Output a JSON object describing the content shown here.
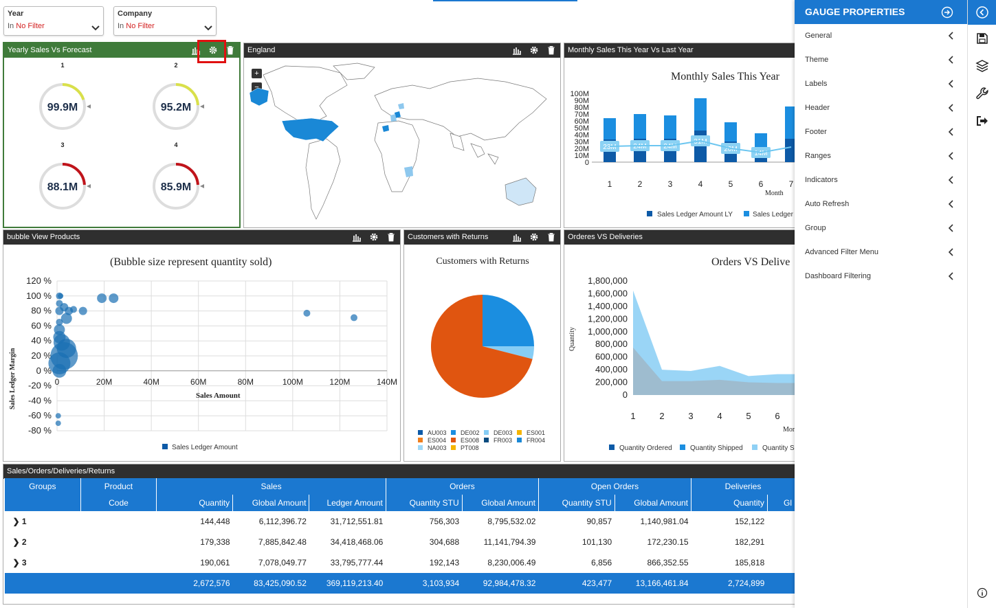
{
  "filters": [
    {
      "title": "Year",
      "prefix": "In",
      "value": "No Filter"
    },
    {
      "title": "Company",
      "prefix": "In",
      "value": "No Filter"
    }
  ],
  "panels": {
    "gauges": {
      "title": "Yearly Sales Vs Forecast",
      "items": [
        {
          "num": "1",
          "value": "99.9M",
          "fraction": 0.2,
          "color": "#d9e04a"
        },
        {
          "num": "2",
          "value": "95.2M",
          "fraction": 0.24,
          "color": "#d9e04a"
        },
        {
          "num": "3",
          "value": "88.1M",
          "fraction": 0.24,
          "color": "#c0141b"
        },
        {
          "num": "4",
          "value": "85.9M",
          "fraction": 0.24,
          "color": "#c0141b"
        }
      ]
    },
    "map": {
      "title": "England",
      "zoom_in": "+",
      "zoom_out": "−"
    },
    "monthly": {
      "title": "Monthly Sales This Year Vs Last Year",
      "chart_title": "Monthly Sales This Year",
      "xlabel": "Month",
      "legend": [
        "Sales Ledger Amount LY",
        "Sales Ledger"
      ]
    },
    "bubble": {
      "title": "bubble View Products",
      "chart_title": "(Bubble size represent quantity sold)",
      "xlabel": "Sales Amount",
      "ylabel": "Sales Ledger Margin",
      "legend": "Sales Ledger Amount"
    },
    "pie": {
      "title": "Customers with Returns",
      "chart_title": "Customers with Returns"
    },
    "orders": {
      "title": "Orderes VS Deliveries",
      "chart_title": "Orders VS Delive",
      "xlabel": "Mon",
      "ylabel": "Quantity",
      "legend": [
        "Quantity Ordered",
        "Quantity Shipped",
        "Quantity S"
      ]
    },
    "table": {
      "title": "Sales/Orders/Deliveries/Returns"
    }
  },
  "chart_data": [
    {
      "type": "bar",
      "title": "Monthly Sales This Year",
      "xlabel": "Month",
      "categories": [
        "1",
        "2",
        "3",
        "4",
        "5",
        "6",
        "7"
      ],
      "yticks": [
        "100M",
        "90M",
        "80M",
        "70M",
        "60M",
        "50M",
        "40M",
        "30M",
        "20M",
        "10M",
        "0"
      ],
      "ylim": [
        0,
        100
      ],
      "series": [
        {
          "name": "Sales Ledger Amount LY",
          "values": [
            33,
            34,
            34,
            46,
            30,
            22,
            34
          ]
        },
        {
          "name": "Sales Ledger",
          "values": [
            64,
            70,
            68,
            93,
            58,
            42,
            81
          ]
        }
      ],
      "line_labels": [
        "23M",
        "24M",
        "24M",
        "31M",
        "20M",
        "14M",
        ""
      ],
      "line_values": [
        23,
        24,
        24,
        31,
        20,
        14,
        22
      ]
    },
    {
      "type": "scatter",
      "title": "(Bubble size represent quantity sold)",
      "xlabel": "Sales Amount",
      "ylabel": "Sales Ledger Margin",
      "xticks": [
        "0",
        "20M",
        "40M",
        "60M",
        "80M",
        "100M",
        "120M",
        "140M"
      ],
      "yticks": [
        "120 %",
        "100 %",
        "80 %",
        "60 %",
        "40 %",
        "20 %",
        "0 %",
        "-20 %",
        "-40 %",
        "-60 %",
        "-80 %"
      ],
      "xlim": [
        0,
        140
      ],
      "ylim": [
        -80,
        120
      ],
      "series": [
        {
          "name": "Sales Ledger Amount",
          "points": [
            [
              1,
              100
            ],
            [
              1.5,
              100
            ],
            [
              1,
              90
            ],
            [
              3,
              85
            ],
            [
              1,
              80
            ],
            [
              4,
              70
            ],
            [
              1,
              65
            ],
            [
              5,
              80
            ],
            [
              7,
              82
            ],
            [
              11,
              80
            ],
            [
              19,
              97
            ],
            [
              24,
              97
            ],
            [
              106,
              77
            ],
            [
              126,
              71
            ],
            [
              1,
              55
            ],
            [
              1,
              45
            ],
            [
              2,
              38
            ],
            [
              4,
              30
            ],
            [
              3,
              20
            ],
            [
              1,
              10
            ],
            [
              1,
              0
            ],
            [
              0.5,
              -60
            ],
            [
              0.5,
              -70
            ]
          ],
          "sizes": [
            5,
            4,
            5,
            6,
            6,
            8,
            5,
            6,
            5,
            6,
            7,
            7,
            5,
            5,
            8,
            9,
            12,
            14,
            20,
            16,
            10,
            4,
            4
          ]
        }
      ]
    },
    {
      "type": "pie",
      "title": "Customers with Returns",
      "slices": [
        {
          "name": "AU003",
          "value": 0,
          "color": "#0d5aa7"
        },
        {
          "name": "DE002",
          "value": 25,
          "color": "#1b8ee0"
        },
        {
          "name": "DE003",
          "value": 4,
          "color": "#86cdf5"
        },
        {
          "name": "ES001",
          "value": 0,
          "color": "#f5b400"
        },
        {
          "name": "ES004",
          "value": 0,
          "color": "#f07f1d"
        },
        {
          "name": "ES008",
          "value": 71,
          "color": "#e05510"
        },
        {
          "name": "FR003",
          "value": 0,
          "color": "#094b7f"
        },
        {
          "name": "FR004",
          "value": 0,
          "color": "#1a88d6"
        },
        {
          "name": "NA003",
          "value": 0,
          "color": "#9fd8f7"
        },
        {
          "name": "PT008",
          "value": 0,
          "color": "#f5b400"
        }
      ]
    },
    {
      "type": "area",
      "title": "Orders VS Delive",
      "xlabel": "Mon",
      "ylabel": "Quantity",
      "categories": [
        "1",
        "2",
        "3",
        "4",
        "5",
        "6"
      ],
      "yticks": [
        "1,800,000",
        "1,600,000",
        "1,400,000",
        "1,200,000",
        "1,000,000",
        "800,000",
        "600,000",
        "400,000",
        "200,000",
        "0"
      ],
      "ylim": [
        0,
        1800000
      ],
      "series": [
        {
          "name": "Quantity Ordered",
          "values": [
            1650000,
            400000,
            380000,
            460000,
            300000,
            330000
          ]
        },
        {
          "name": "Quantity Shipped",
          "values": [
            750000,
            220000,
            220000,
            240000,
            200000,
            190000
          ]
        }
      ]
    }
  ],
  "table": {
    "groups": [
      "Groups",
      "Product",
      "Sales",
      "Orders",
      "Open Orders",
      "Deliveries"
    ],
    "sub": [
      "",
      "Code",
      "Quantity",
      "Global Amount",
      "Ledger Amount",
      "Quantity STU",
      "Global Amount",
      "Quantity STU",
      "Global Amount",
      "Quantity",
      "Gl"
    ],
    "rows": [
      [
        "1",
        "",
        "144,448",
        "6,112,396.72",
        "31,712,551.81",
        "756,303",
        "8,795,532.02",
        "90,857",
        "1,140,981.04",
        "152,122"
      ],
      [
        "2",
        "",
        "179,338",
        "7,885,842.48",
        "34,418,468.06",
        "304,688",
        "11,141,794.39",
        "101,130",
        "172,230.15",
        "182,291"
      ],
      [
        "3",
        "",
        "190,061",
        "7,078,049.77",
        "33,795,777.44",
        "192,143",
        "8,230,006.49",
        "6,856",
        "866,352.55",
        "185,818"
      ]
    ],
    "totals": [
      "",
      "",
      "2,672,576",
      "83,425,090.52",
      "369,119,213.40",
      "3,103,934",
      "92,984,478.32",
      "423,477",
      "13,166,461.84",
      "2,724,899"
    ]
  },
  "sidebar": {
    "title": "GAUGE PROPERTIES",
    "items": [
      "General",
      "Theme",
      "Labels",
      "Header",
      "Footer",
      "Ranges",
      "Indicators",
      "Auto Refresh",
      "Group",
      "Advanced Filter Menu",
      "Dashboard Filtering"
    ]
  },
  "toolbar": [
    "collapse-icon",
    "save-icon",
    "layers-icon",
    "wrench-icon",
    "exit-icon"
  ]
}
